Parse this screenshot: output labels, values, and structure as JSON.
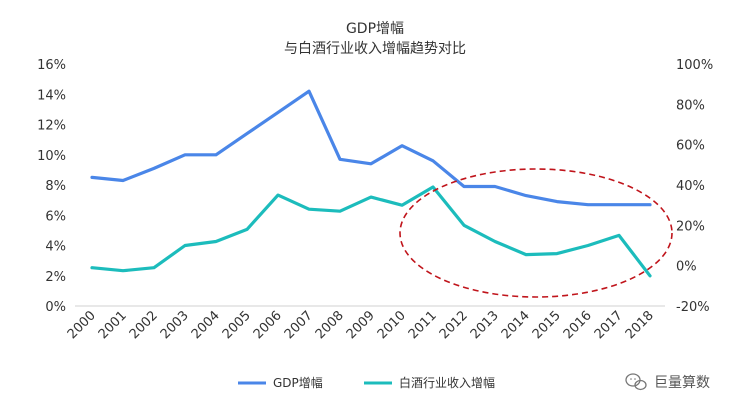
{
  "chart_data": {
    "type": "line",
    "title": "GDP增幅",
    "subtitle": "与白酒行业收入增幅趋势对比",
    "categories": [
      "2000",
      "2001",
      "2002",
      "2003",
      "2004",
      "2005",
      "2006",
      "2007",
      "2008",
      "2009",
      "2010",
      "2011",
      "2012",
      "2013",
      "2014",
      "2015",
      "2016",
      "2017",
      "2018"
    ],
    "y_left": {
      "min": 0,
      "max": 16,
      "step": 2,
      "ticks": [
        "0%",
        "2%",
        "4%",
        "6%",
        "8%",
        "10%",
        "12%",
        "14%",
        "16%"
      ]
    },
    "y_right": {
      "min": -20,
      "max": 100,
      "step": 20,
      "ticks": [
        "-20%",
        "0%",
        "20%",
        "40%",
        "60%",
        "80%",
        "100%"
      ]
    },
    "grid": false,
    "legend_position": "bottom",
    "series": [
      {
        "name": "GDP增幅",
        "axis": "left",
        "color": "#4a86e8",
        "values": [
          8.5,
          8.3,
          9.1,
          10.0,
          10.0,
          11.4,
          12.8,
          14.2,
          9.7,
          9.4,
          10.6,
          9.6,
          7.9,
          7.9,
          7.3,
          6.9,
          6.7,
          6.7,
          6.7
        ]
      },
      {
        "name": "白酒行业收入增幅",
        "axis": "right",
        "color": "#1cbcbc",
        "values": [
          -1,
          -2.5,
          -1,
          10,
          12,
          18,
          35,
          28,
          27,
          34,
          30,
          39,
          20,
          12,
          5.5,
          6,
          10,
          15,
          -5
        ]
      }
    ],
    "annotation": {
      "shape": "dashed-ellipse",
      "color": "#c0141b",
      "marks_range": [
        "2012",
        "2018"
      ]
    }
  },
  "watermark": {
    "text": "巨量算数",
    "icon": "wechat-icon"
  }
}
